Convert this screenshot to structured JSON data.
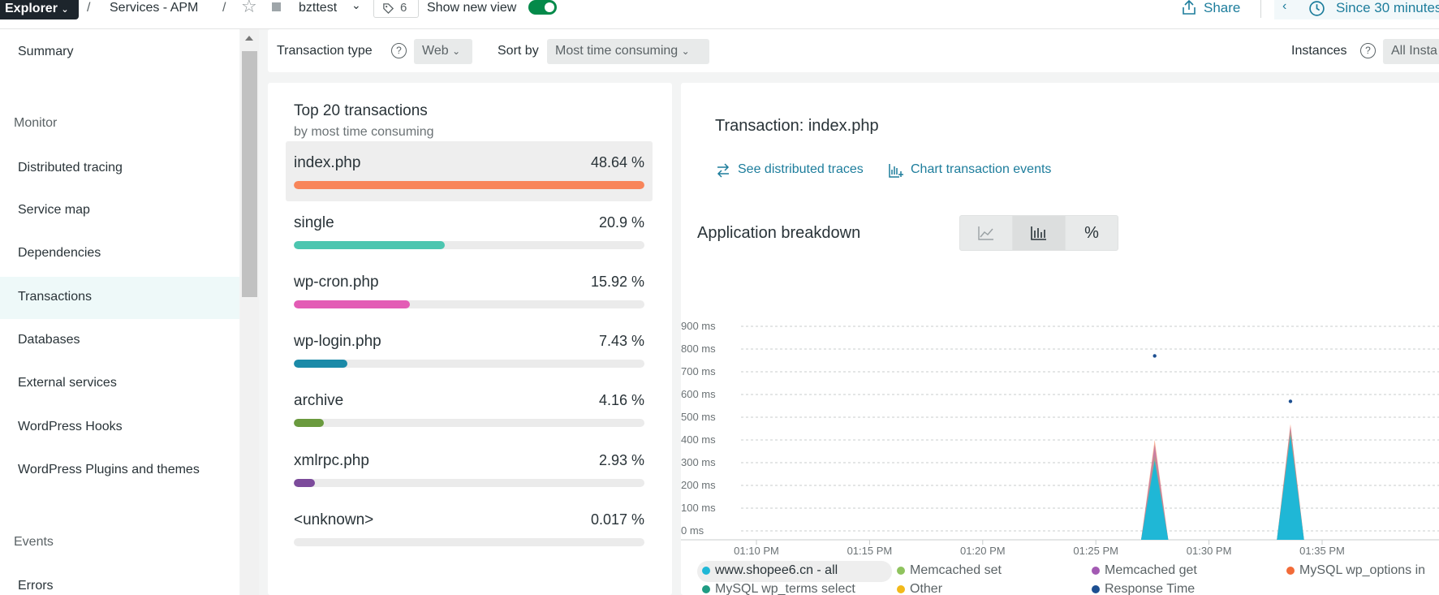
{
  "topbar": {
    "explorer_label": "Explorer",
    "sep1": "/",
    "service_label": "Services - APM",
    "sep2": "/",
    "entity_name": "bzttest",
    "tag_count": "6",
    "show_new_view_label": "Show new view",
    "share_label": "Share",
    "time_range_label": "Since 30 minutes"
  },
  "sidebar": {
    "summary": "Summary",
    "monitor_heading": "Monitor",
    "items": [
      {
        "label": "Distributed tracing"
      },
      {
        "label": "Service map"
      },
      {
        "label": "Dependencies"
      },
      {
        "label": "Transactions"
      },
      {
        "label": "Databases"
      },
      {
        "label": "External services"
      },
      {
        "label": "WordPress Hooks"
      },
      {
        "label": "WordPress Plugins and themes"
      }
    ],
    "events_heading": "Events",
    "errors": "Errors"
  },
  "filters": {
    "transaction_type_label": "Transaction type",
    "transaction_type_value": "Web",
    "sort_by_label": "Sort by",
    "sort_by_value": "Most time consuming",
    "instances_label": "Instances",
    "instances_value": "All Insta"
  },
  "top20": {
    "title": "Top 20 transactions",
    "subtitle": "by most time consuming",
    "rows": [
      {
        "name": "index.php",
        "pct_label": "48.64 %",
        "fraction": 1.0,
        "color": "#f8855a"
      },
      {
        "name": "single",
        "pct_label": "20.9 %",
        "fraction": 0.43,
        "color": "#4cc6b0"
      },
      {
        "name": "wp-cron.php",
        "pct_label": "15.92 %",
        "fraction": 0.33,
        "color": "#e35cb5"
      },
      {
        "name": "wp-login.php",
        "pct_label": "7.43 %",
        "fraction": 0.153,
        "color": "#1b8aa8"
      },
      {
        "name": "archive",
        "pct_label": "4.16 %",
        "fraction": 0.086,
        "color": "#6a9a3e"
      },
      {
        "name": "xmlrpc.php",
        "pct_label": "2.93 %",
        "fraction": 0.06,
        "color": "#7c4b9b"
      },
      {
        "name": "<unknown>",
        "pct_label": "0.017 %",
        "fraction": 0.0,
        "color": "#999999"
      }
    ]
  },
  "detail": {
    "title": "Transaction: index.php",
    "link_traces": "See distributed traces",
    "link_events": "Chart transaction events",
    "breakdown_title": "Application breakdown",
    "seg_percent": "%"
  },
  "chart_data": {
    "type": "area",
    "title": "Application breakdown",
    "y_tick_labels": [
      "900 ms",
      "800 ms",
      "700 ms",
      "600 ms",
      "500 ms",
      "400 ms",
      "300 ms",
      "200 ms",
      "100 ms",
      "0 ms"
    ],
    "x_tick_labels": [
      "01:10 PM",
      "01:15 PM",
      "01:20 PM",
      "01:25 PM",
      "01:30 PM",
      "01:35 PM"
    ],
    "ylim": [
      0,
      900
    ],
    "grid": true,
    "series": [
      {
        "name": "www.shopee6.cn - all",
        "color": "#1fb7d6",
        "points": [
          [
            27.0,
            0
          ],
          [
            27.6,
            310
          ],
          [
            28.2,
            0
          ],
          [
            33.0,
            0
          ],
          [
            33.6,
            420
          ],
          [
            34.2,
            0
          ]
        ]
      },
      {
        "name": "Memcached set",
        "color": "#8fc35e",
        "points": [
          [
            27.6,
            330
          ],
          [
            33.6,
            440
          ]
        ]
      },
      {
        "name": "Memcached get",
        "color": "#a35ab3",
        "points": [
          [
            27.6,
            380
          ],
          [
            33.6,
            460
          ]
        ]
      },
      {
        "name": "MySQL wp_options in",
        "color": "#f26b38",
        "points": [
          [
            27.6,
            400
          ],
          [
            33.6,
            470
          ]
        ]
      },
      {
        "name": "MySQL wp_terms select",
        "color": "#1f9c83",
        "points": []
      },
      {
        "name": "Other",
        "color": "#f2b91a",
        "points": []
      },
      {
        "name": "Response Time",
        "color": "#1d4f91",
        "points": [
          [
            27.6,
            770
          ],
          [
            33.6,
            570
          ]
        ]
      }
    ]
  }
}
